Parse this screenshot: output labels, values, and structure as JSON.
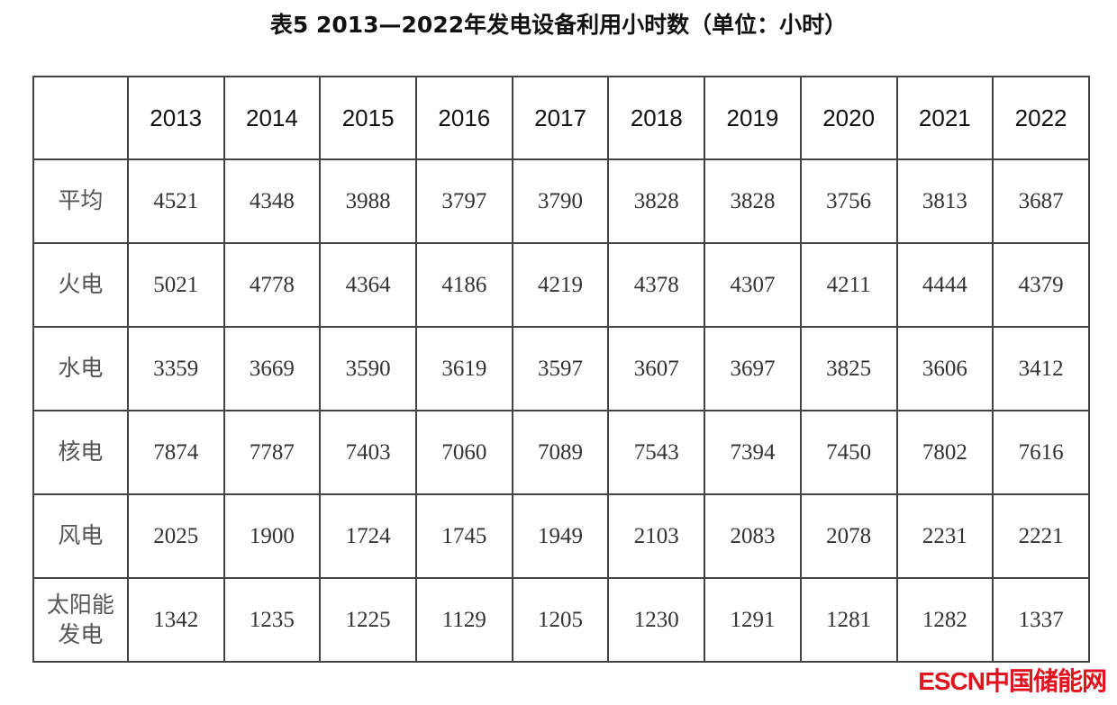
{
  "title": "表5  2013—2022年发电设备利用小时数（单位：小时）",
  "table": {
    "corner": "",
    "years": [
      "2013",
      "2014",
      "2015",
      "2016",
      "2017",
      "2018",
      "2019",
      "2020",
      "2021",
      "2022"
    ],
    "rows": [
      {
        "label": "平均",
        "values": [
          "4521",
          "4348",
          "3988",
          "3797",
          "3790",
          "3828",
          "3828",
          "3756",
          "3813",
          "3687"
        ]
      },
      {
        "label": "火电",
        "values": [
          "5021",
          "4778",
          "4364",
          "4186",
          "4219",
          "4378",
          "4307",
          "4211",
          "4444",
          "4379"
        ]
      },
      {
        "label": "水电",
        "values": [
          "3359",
          "3669",
          "3590",
          "3619",
          "3597",
          "3607",
          "3697",
          "3825",
          "3606",
          "3412"
        ]
      },
      {
        "label": "核电",
        "values": [
          "7874",
          "7787",
          "7403",
          "7060",
          "7089",
          "7543",
          "7394",
          "7450",
          "7802",
          "7616"
        ]
      },
      {
        "label": "风电",
        "values": [
          "2025",
          "1900",
          "1724",
          "1745",
          "1949",
          "2103",
          "2083",
          "2078",
          "2231",
          "2221"
        ]
      },
      {
        "label": "太阳能发电",
        "values": [
          "1342",
          "1235",
          "1225",
          "1129",
          "1205",
          "1230",
          "1291",
          "1281",
          "1282",
          "1337"
        ]
      }
    ]
  },
  "watermark": "ESCN中国储能网",
  "colors": {
    "watermark": "#e0141e",
    "grid": "#444444"
  }
}
